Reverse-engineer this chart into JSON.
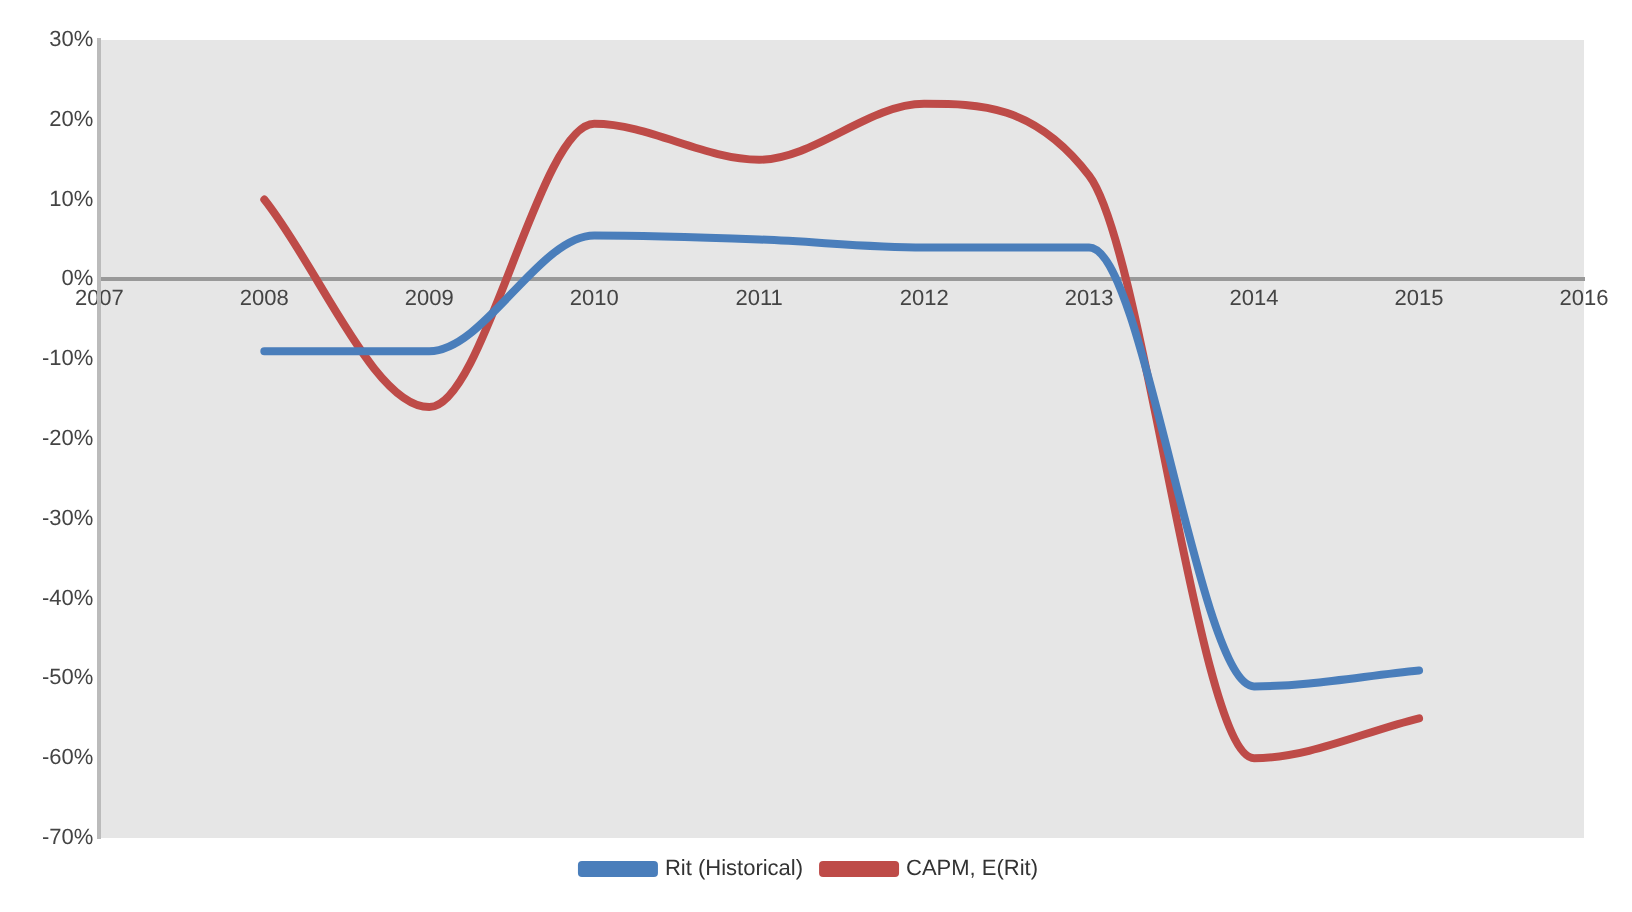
{
  "chart_data": {
    "type": "line",
    "x": [
      2008,
      2009,
      2010,
      2011,
      2012,
      2013,
      2014,
      2015
    ],
    "series": [
      {
        "name": "Rit (Historical)",
        "color": "#4a7ebb",
        "values": [
          -9,
          -9,
          5.5,
          5,
          4,
          4,
          -51,
          -49
        ]
      },
      {
        "name": "CAPM, E(Rit)",
        "color": "#be4b48",
        "values": [
          10,
          -16,
          19.5,
          15,
          22,
          13,
          -60,
          -55
        ]
      }
    ],
    "xlim": [
      2007,
      2016
    ],
    "xticks": [
      2007,
      2008,
      2009,
      2010,
      2011,
      2012,
      2013,
      2014,
      2015,
      2016
    ],
    "ylim": [
      -70,
      30
    ],
    "yticks": [
      {
        "value": 30,
        "label": "30%"
      },
      {
        "value": 20,
        "label": "20%"
      },
      {
        "value": 10,
        "label": "10%"
      },
      {
        "value": 0,
        "label": "0%"
      },
      {
        "value": -10,
        "label": "-10%"
      },
      {
        "value": -20,
        "label": "-20%"
      },
      {
        "value": -30,
        "label": "-30%"
      },
      {
        "value": -40,
        "label": "-40%"
      },
      {
        "value": -50,
        "label": "-50%"
      },
      {
        "value": -60,
        "label": "-60%"
      },
      {
        "value": -70,
        "label": "-70%"
      }
    ],
    "grid": false,
    "legend": "bottom",
    "marker": "none",
    "line_style": "solid"
  }
}
